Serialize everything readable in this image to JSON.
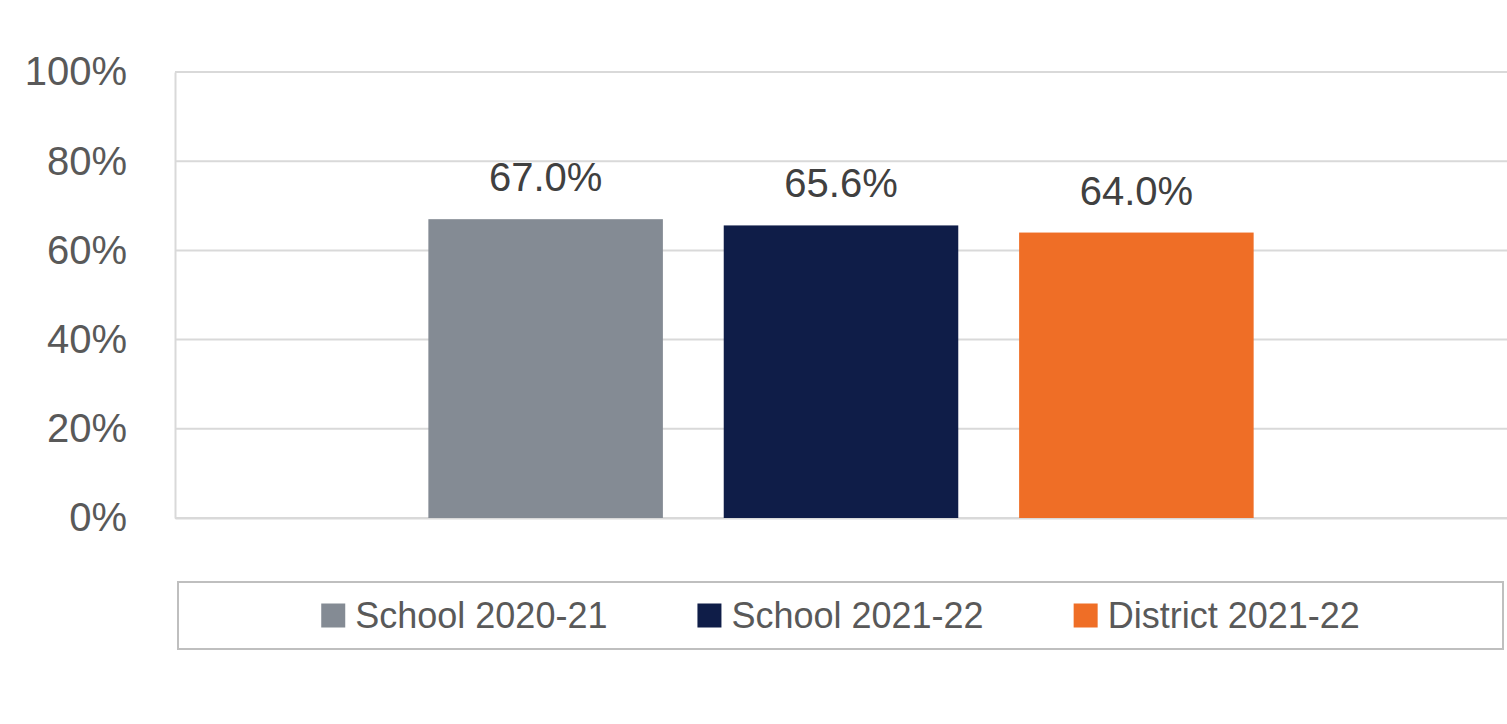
{
  "chart_data": {
    "type": "bar",
    "categories": [
      null
    ],
    "series": [
      {
        "name": "School 2020-21",
        "color": "#848b94",
        "values": [
          67.0
        ],
        "value_labels": [
          "67.0%"
        ]
      },
      {
        "name": "School 2021-22",
        "color": "#0f1d48",
        "values": [
          65.6
        ],
        "value_labels": [
          "65.6%"
        ]
      },
      {
        "name": "District 2021-22",
        "color": "#ef6e26",
        "values": [
          64.0
        ],
        "value_labels": [
          "64.0%"
        ]
      }
    ],
    "ylim": [
      0,
      100
    ],
    "yticks": [
      {
        "value": 0,
        "label": "0%"
      },
      {
        "value": 20,
        "label": "20%"
      },
      {
        "value": 40,
        "label": "40%"
      },
      {
        "value": 60,
        "label": "60%"
      },
      {
        "value": 80,
        "label": "80%"
      },
      {
        "value": 100,
        "label": "100%"
      }
    ],
    "grid": true,
    "data_labels": true,
    "legend": "bottom"
  }
}
